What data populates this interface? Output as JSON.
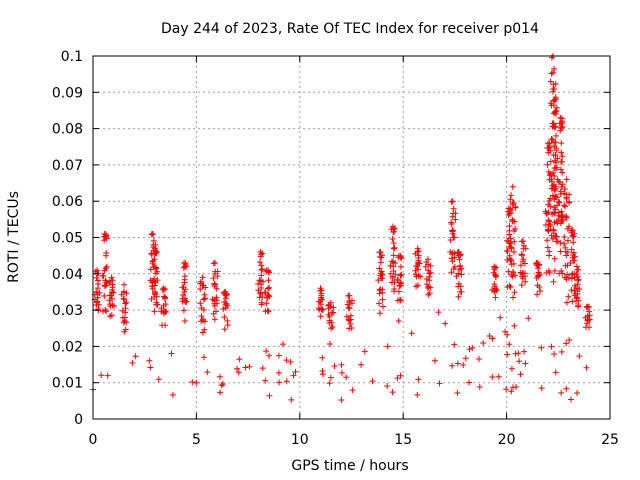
{
  "chart_data": {
    "type": "scatter",
    "title": "Day 244 of 2023, Rate Of TEC Index for receiver p014",
    "xlabel": "GPS time / hours",
    "ylabel": "ROTI / TECUs",
    "xlim": [
      0,
      25
    ],
    "ylim": [
      0,
      0.1
    ],
    "x_ticks": [
      0,
      5,
      10,
      15,
      20,
      25
    ],
    "x_tick_labels": [
      "0",
      "5",
      "10",
      "15",
      "20",
      "25"
    ],
    "y_ticks": [
      0,
      0.01,
      0.02,
      0.03,
      0.04,
      0.05,
      0.06,
      0.07,
      0.08,
      0.09,
      0.1
    ],
    "y_tick_labels": [
      "0",
      "0.01",
      "0.02",
      "0.03",
      "0.04",
      "0.05",
      "0.06",
      "0.07",
      "0.08",
      "0.09",
      "0.1"
    ],
    "grid": true,
    "marker": "plus",
    "color": "#ff0000",
    "envelope": {
      "x": [
        0.0,
        0.3,
        0.6,
        1.0,
        1.5,
        2.0,
        2.5,
        3.0,
        3.5,
        4.0,
        4.5,
        5.0,
        5.5,
        6.0,
        6.5,
        7.0,
        7.5,
        8.0,
        8.3,
        8.6,
        9.0,
        9.5,
        10.0,
        10.5,
        11.0,
        11.5,
        12.0,
        12.5,
        13.0,
        13.5,
        14.0,
        14.5,
        15.0,
        15.5,
        16.0,
        16.5,
        17.0,
        17.5,
        18.0,
        18.5,
        19.0,
        19.5,
        20.0,
        20.5,
        21.0,
        21.5,
        22.0,
        22.3,
        22.6,
        23.0,
        23.5,
        24.0
      ],
      "low": [
        0.007,
        0.007,
        0.006,
        0.005,
        0.006,
        0.006,
        0.006,
        0.006,
        0.006,
        0.006,
        0.006,
        0.006,
        0.006,
        0.006,
        0.006,
        0.006,
        0.006,
        0.006,
        0.006,
        0.006,
        0.005,
        0.004,
        0.005,
        0.005,
        0.006,
        0.005,
        0.005,
        0.005,
        0.006,
        0.006,
        0.006,
        0.006,
        0.006,
        0.006,
        0.006,
        0.006,
        0.006,
        0.006,
        0.006,
        0.006,
        0.006,
        0.006,
        0.006,
        0.006,
        0.006,
        0.006,
        0.007,
        0.007,
        0.006,
        0.005,
        0.005,
        0.005
      ],
      "typical_high": [
        0.024,
        0.028,
        0.027,
        0.025,
        0.024,
        0.024,
        0.024,
        0.027,
        0.024,
        0.024,
        0.025,
        0.025,
        0.023,
        0.024,
        0.023,
        0.024,
        0.024,
        0.026,
        0.03,
        0.025,
        0.022,
        0.019,
        0.021,
        0.023,
        0.026,
        0.025,
        0.022,
        0.023,
        0.024,
        0.025,
        0.027,
        0.03,
        0.032,
        0.033,
        0.035,
        0.033,
        0.034,
        0.033,
        0.03,
        0.029,
        0.029,
        0.031,
        0.034,
        0.033,
        0.032,
        0.033,
        0.036,
        0.038,
        0.035,
        0.031,
        0.027,
        0.024
      ],
      "center": [
        0.013,
        0.014,
        0.013,
        0.013,
        0.013,
        0.013,
        0.013,
        0.013,
        0.013,
        0.013,
        0.013,
        0.013,
        0.013,
        0.013,
        0.013,
        0.013,
        0.013,
        0.013,
        0.014,
        0.013,
        0.012,
        0.01,
        0.011,
        0.012,
        0.013,
        0.013,
        0.012,
        0.012,
        0.013,
        0.013,
        0.014,
        0.015,
        0.016,
        0.016,
        0.017,
        0.017,
        0.017,
        0.017,
        0.016,
        0.015,
        0.015,
        0.016,
        0.017,
        0.017,
        0.016,
        0.017,
        0.018,
        0.019,
        0.018,
        0.016,
        0.014,
        0.013
      ]
    },
    "peaks": [
      {
        "x": 0.2,
        "y": 0.041
      },
      {
        "x": 0.55,
        "y": 0.051
      },
      {
        "x": 0.9,
        "y": 0.039
      },
      {
        "x": 1.5,
        "y": 0.037
      },
      {
        "x": 2.9,
        "y": 0.051
      },
      {
        "x": 3.0,
        "y": 0.047
      },
      {
        "x": 3.4,
        "y": 0.036
      },
      {
        "x": 4.4,
        "y": 0.043
      },
      {
        "x": 5.3,
        "y": 0.039
      },
      {
        "x": 5.9,
        "y": 0.043
      },
      {
        "x": 6.4,
        "y": 0.035
      },
      {
        "x": 8.1,
        "y": 0.046
      },
      {
        "x": 8.4,
        "y": 0.041
      },
      {
        "x": 11.0,
        "y": 0.036
      },
      {
        "x": 11.5,
        "y": 0.032
      },
      {
        "x": 12.4,
        "y": 0.034
      },
      {
        "x": 13.9,
        "y": 0.046
      },
      {
        "x": 14.5,
        "y": 0.053
      },
      {
        "x": 14.8,
        "y": 0.045
      },
      {
        "x": 15.7,
        "y": 0.047
      },
      {
        "x": 16.2,
        "y": 0.044
      },
      {
        "x": 17.4,
        "y": 0.06
      },
      {
        "x": 17.7,
        "y": 0.046
      },
      {
        "x": 19.4,
        "y": 0.042
      },
      {
        "x": 20.1,
        "y": 0.058
      },
      {
        "x": 20.3,
        "y": 0.064
      },
      {
        "x": 20.8,
        "y": 0.049
      },
      {
        "x": 21.5,
        "y": 0.043
      },
      {
        "x": 22.0,
        "y": 0.076
      },
      {
        "x": 22.25,
        "y": 0.1
      },
      {
        "x": 22.35,
        "y": 0.088
      },
      {
        "x": 22.6,
        "y": 0.083
      },
      {
        "x": 22.9,
        "y": 0.066
      },
      {
        "x": 23.2,
        "y": 0.052
      },
      {
        "x": 23.4,
        "y": 0.042
      },
      {
        "x": 23.9,
        "y": 0.031
      }
    ]
  }
}
